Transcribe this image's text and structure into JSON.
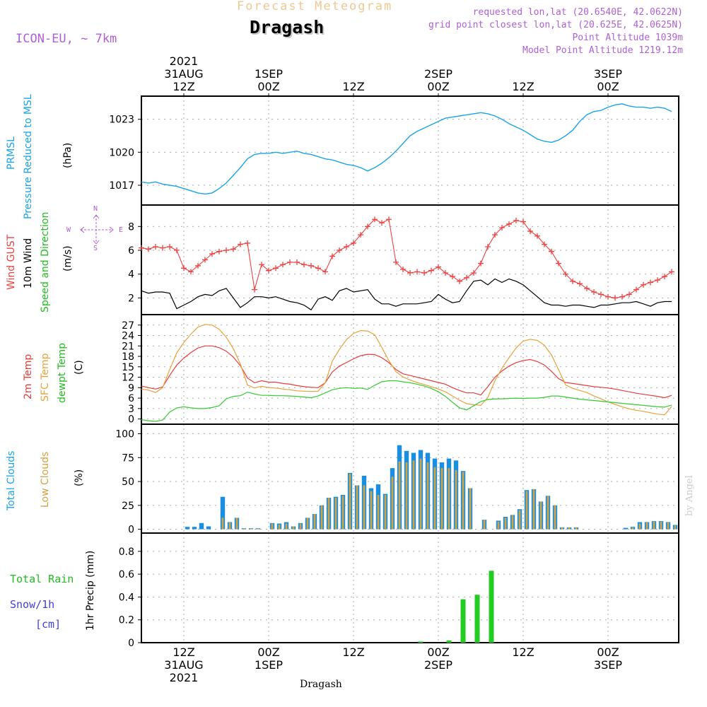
{
  "header": {
    "title_top": "Forecast Meteogram",
    "location": "Dragash",
    "model": "ICON-EU, ~ 7km",
    "requested": "requested lon,lat (20.6540E, 42.0622N)",
    "grid_point": "grid point closest lon,lat (20.625E, 42.0625N)",
    "point_alt": "Point Altitude 1039m",
    "model_alt": "Model Point Altitude 1219.12m"
  },
  "top_time_labels": [
    {
      "line1": "2021",
      "line2": "31AUG",
      "line3": "12Z",
      "t": 6
    },
    {
      "line1": "",
      "line2": "1SEP",
      "line3": "00Z",
      "t": 18
    },
    {
      "line1": "",
      "line2": "",
      "line3": "12Z",
      "t": 30
    },
    {
      "line1": "",
      "line2": "2SEP",
      "line3": "00Z",
      "t": 42
    },
    {
      "line1": "",
      "line2": "",
      "line3": "12Z",
      "t": 54
    },
    {
      "line1": "",
      "line2": "3SEP",
      "line3": "00Z",
      "t": 66
    }
  ],
  "bottom_time_labels": [
    {
      "line1": "12Z",
      "line2": "31AUG",
      "line3": "2021",
      "t": 6
    },
    {
      "line1": "00Z",
      "line2": "1SEP",
      "line3": "",
      "t": 18
    },
    {
      "line1": "12Z",
      "line2": "",
      "line3": "",
      "t": 30
    },
    {
      "line1": "00Z",
      "line2": "2SEP",
      "line3": "",
      "t": 42
    },
    {
      "line1": "12Z",
      "line2": "",
      "line3": "",
      "t": 54
    },
    {
      "line1": "00Z",
      "line2": "3SEP",
      "line3": "",
      "t": 66
    }
  ],
  "footer_location": "Dragash",
  "credit": "by Angel",
  "colors": {
    "pressure": "#1aa3e8",
    "gust": "#f04040",
    "wind": "#000000",
    "temp2m": "#e83c3c",
    "sfc": "#e8a23c",
    "dewpt": "#33cc33",
    "total_clouds": "#1a8fe0",
    "low_clouds": "#d4a040",
    "rain": "#22cc22",
    "snow": "#4040e0",
    "compass": "#b05fd6"
  },
  "labels": {
    "prmsl": "PRMSL",
    "prmsl_desc": "Pressure Reduced to MSL",
    "hpa": "(hPa)",
    "gust": "Wind GUST",
    "wind10m": "10m Wind",
    "wind_speed_dir": "Speed and Direction",
    "ms": "(m/s)",
    "temp2m": "2m Temp",
    "sfc": "SFC Temp",
    "dewpt": "dewpt Temp",
    "c": "(C)",
    "total_clouds": "Total Clouds",
    "low_clouds": "Low Clouds",
    "pct": "(%)",
    "total_rain": "Total  Rain",
    "snow": "Snow/1h",
    "cm": "[cm]",
    "precip": "1hr Precip (mm)",
    "compass_n": "N",
    "compass_s": "S",
    "compass_w": "W",
    "compass_e": "E"
  },
  "chart_data": [
    {
      "type": "line",
      "title": "PRMSL Pressure Reduced to MSL",
      "ylabel": "(hPa)",
      "ylim": [
        1015.2,
        1025.1
      ],
      "yticks": [
        "1017",
        "1020",
        "1023"
      ],
      "x": [
        0,
        1,
        2,
        3,
        4,
        5,
        6,
        7,
        8,
        9,
        10,
        11,
        12,
        13,
        14,
        15,
        16,
        17,
        18,
        19,
        20,
        21,
        22,
        23,
        24,
        25,
        26,
        27,
        28,
        29,
        30,
        31,
        32,
        33,
        34,
        35,
        36,
        37,
        38,
        39,
        40,
        41,
        42,
        43,
        44,
        45,
        46,
        47,
        48,
        49,
        50,
        51,
        52,
        53,
        54,
        55,
        56,
        57,
        58,
        59,
        60,
        61,
        62,
        63,
        64,
        65,
        66,
        67,
        68,
        69,
        70,
        71,
        72,
        73,
        74,
        75
      ],
      "series": [
        {
          "name": "PRMSL",
          "values": [
            1017.3,
            1017.2,
            1017.3,
            1017.1,
            1017.0,
            1016.9,
            1016.7,
            1016.5,
            1016.3,
            1016.2,
            1016.3,
            1016.7,
            1017.2,
            1017.9,
            1018.6,
            1019.4,
            1019.8,
            1019.9,
            1019.9,
            1020.0,
            1019.9,
            1020.0,
            1020.1,
            1019.9,
            1019.8,
            1019.6,
            1019.4,
            1019.3,
            1019.1,
            1018.9,
            1018.8,
            1018.6,
            1018.3,
            1018.6,
            1019.0,
            1019.5,
            1020.1,
            1020.8,
            1021.5,
            1021.9,
            1022.2,
            1022.5,
            1022.8,
            1023.1,
            1023.2,
            1023.3,
            1023.4,
            1023.5,
            1023.6,
            1023.5,
            1023.3,
            1023.0,
            1022.6,
            1022.3,
            1022.0,
            1021.6,
            1021.2,
            1021.0,
            1020.9,
            1021.1,
            1021.5,
            1022.0,
            1022.8,
            1023.4,
            1023.7,
            1023.8,
            1024.1,
            1024.3,
            1024.4,
            1024.2,
            1024.1,
            1024.1,
            1024.0,
            1024.1,
            1024.0,
            1023.7
          ]
        }
      ]
    },
    {
      "type": "line",
      "title": "Wind GUST / 10m Wind Speed and Direction",
      "ylabel": "(m/s)",
      "ylim": [
        0.6,
        9.8
      ],
      "yticks": [
        "2",
        "4",
        "6",
        "8"
      ],
      "x": [
        0,
        1,
        2,
        3,
        4,
        5,
        6,
        7,
        8,
        9,
        10,
        11,
        12,
        13,
        14,
        15,
        16,
        17,
        18,
        19,
        20,
        21,
        22,
        23,
        24,
        25,
        26,
        27,
        28,
        29,
        30,
        31,
        32,
        33,
        34,
        35,
        36,
        37,
        38,
        39,
        40,
        41,
        42,
        43,
        44,
        45,
        46,
        47,
        48,
        49,
        50,
        51,
        52,
        53,
        54,
        55,
        56,
        57,
        58,
        59,
        60,
        61,
        62,
        63,
        64,
        65,
        66,
        67,
        68,
        69,
        70,
        71,
        72,
        73,
        74,
        75
      ],
      "series": [
        {
          "name": "Wind GUST",
          "values": [
            6.2,
            6.1,
            6.3,
            6.2,
            6.3,
            6.0,
            4.5,
            4.2,
            4.7,
            5.2,
            5.7,
            5.9,
            6.0,
            6.1,
            6.5,
            6.6,
            2.7,
            4.8,
            4.3,
            4.5,
            4.8,
            5.0,
            5.0,
            4.8,
            4.7,
            4.5,
            4.2,
            5.5,
            6.0,
            6.3,
            6.6,
            7.3,
            8.0,
            8.6,
            8.3,
            8.6,
            5.0,
            4.4,
            4.1,
            4.2,
            4.1,
            4.3,
            4.6,
            4.1,
            3.8,
            3.4,
            3.7,
            4.1,
            4.9,
            6.3,
            7.3,
            7.9,
            8.2,
            8.5,
            8.4,
            7.6,
            7.2,
            6.5,
            5.9,
            4.9,
            4.0,
            3.4,
            3.2,
            2.8,
            2.5,
            2.3,
            2.1,
            2.0,
            2.1,
            2.3,
            2.7,
            3.1,
            3.3,
            3.5,
            3.8,
            4.2
          ]
        },
        {
          "name": "10m Wind",
          "values": [
            2.6,
            2.4,
            2.5,
            2.5,
            2.4,
            1.1,
            1.4,
            1.7,
            2.1,
            2.3,
            2.2,
            2.6,
            2.8,
            2.0,
            1.2,
            1.6,
            2.1,
            2.1,
            2.0,
            2.1,
            1.9,
            1.7,
            1.6,
            1.4,
            1.0,
            1.9,
            2.1,
            1.8,
            2.6,
            2.8,
            2.5,
            2.6,
            2.7,
            1.9,
            1.5,
            1.5,
            1.3,
            1.5,
            1.5,
            1.5,
            1.6,
            1.7,
            2.3,
            1.9,
            1.6,
            1.7,
            2.6,
            3.4,
            3.5,
            3.1,
            3.6,
            3.3,
            3.6,
            3.4,
            3.1,
            2.6,
            2.1,
            1.6,
            1.4,
            1.4,
            1.3,
            1.4,
            1.4,
            1.3,
            1.2,
            1.4,
            1.4,
            1.5,
            1.6,
            1.6,
            1.7,
            1.5,
            1.3,
            1.6,
            1.7,
            1.7
          ]
        }
      ]
    },
    {
      "type": "line",
      "title": "2m Temp / SFC Temp / dewpt Temp",
      "ylabel": "(C)",
      "ylim": [
        -1.5,
        30
      ],
      "yticks": [
        "0",
        "3",
        "6",
        "9",
        "12",
        "15",
        "18",
        "21",
        "24",
        "27"
      ],
      "x": [
        0,
        1,
        2,
        3,
        4,
        5,
        6,
        7,
        8,
        9,
        10,
        11,
        12,
        13,
        14,
        15,
        16,
        17,
        18,
        19,
        20,
        21,
        22,
        23,
        24,
        25,
        26,
        27,
        28,
        29,
        30,
        31,
        32,
        33,
        34,
        35,
        36,
        37,
        38,
        39,
        40,
        41,
        42,
        43,
        44,
        45,
        46,
        47,
        48,
        49,
        50,
        51,
        52,
        53,
        54,
        55,
        56,
        57,
        58,
        59,
        60,
        61,
        62,
        63,
        64,
        65,
        66,
        67,
        68,
        69,
        70,
        71,
        72,
        73,
        74,
        75
      ],
      "series": [
        {
          "name": "2m Temp",
          "values": [
            9.5,
            9.0,
            8.6,
            9.2,
            12.5,
            15.5,
            17.5,
            19.1,
            20.4,
            21.0,
            21.0,
            20.5,
            19.5,
            17.8,
            15.3,
            11.8,
            10.4,
            11.0,
            10.6,
            10.6,
            10.2,
            10.0,
            9.6,
            9.3,
            9.1,
            9.0,
            10.4,
            13.5,
            15.2,
            16.2,
            17.3,
            18.2,
            18.6,
            18.5,
            17.6,
            16.2,
            14.2,
            13.0,
            12.5,
            12.0,
            11.5,
            11.0,
            10.5,
            10.0,
            9.0,
            8.2,
            7.5,
            7.5,
            6.9,
            9.3,
            12.0,
            13.8,
            15.2,
            16.2,
            16.8,
            17.1,
            16.5,
            15.5,
            13.7,
            11.6,
            10.5,
            10.2,
            9.9,
            9.6,
            9.3,
            9.1,
            8.9,
            8.6,
            8.2,
            7.8,
            7.4,
            7.1,
            6.8,
            6.5,
            6.1,
            6.8
          ]
        },
        {
          "name": "SFC Temp",
          "values": [
            8.6,
            8.3,
            7.6,
            9.0,
            14.2,
            19.0,
            22.0,
            24.4,
            26.4,
            27.2,
            27.0,
            25.8,
            23.5,
            20.2,
            15.8,
            9.8,
            8.9,
            9.4,
            9.0,
            8.9,
            8.6,
            8.4,
            8.1,
            8.0,
            7.9,
            8.0,
            10.4,
            16.6,
            20.0,
            22.8,
            24.6,
            25.4,
            25.3,
            24.2,
            20.6,
            16.8,
            13.6,
            12.1,
            11.2,
            10.5,
            9.9,
            9.3,
            8.6,
            7.8,
            6.6,
            5.4,
            4.4,
            4.1,
            3.9,
            6.2,
            11.0,
            14.6,
            17.6,
            20.4,
            22.4,
            22.9,
            22.6,
            21.2,
            18.4,
            14.2,
            9.8,
            8.8,
            8.2,
            7.6,
            6.6,
            5.8,
            4.9,
            4.2,
            3.5,
            2.9,
            2.5,
            2.2,
            1.8,
            1.4,
            1.2,
            3.6
          ]
        },
        {
          "name": "dewpt Temp",
          "values": [
            -0.2,
            -0.5,
            -0.7,
            -0.3,
            2.0,
            3.2,
            3.5,
            3.2,
            3.0,
            3.0,
            3.3,
            3.8,
            5.8,
            6.5,
            6.7,
            7.7,
            7.2,
            6.8,
            6.8,
            6.7,
            6.7,
            6.6,
            6.5,
            6.3,
            6.1,
            6.6,
            7.5,
            8.4,
            8.8,
            9.0,
            8.8,
            8.9,
            8.5,
            9.7,
            10.7,
            11.0,
            11.0,
            10.7,
            10.4,
            10.0,
            9.5,
            8.8,
            7.8,
            6.5,
            4.8,
            3.2,
            2.6,
            3.8,
            5.0,
            5.6,
            5.8,
            5.8,
            5.9,
            6.0,
            5.9,
            6.0,
            6.0,
            6.2,
            6.6,
            6.6,
            6.3,
            6.0,
            5.7,
            5.5,
            5.3,
            5.1,
            4.9,
            4.7,
            4.5,
            4.3,
            4.1,
            3.9,
            3.7,
            3.5,
            3.4,
            4.0
          ]
        }
      ]
    },
    {
      "type": "bar",
      "title": "Total Clouds / Low Clouds",
      "ylabel": "(%)",
      "ylim": [
        -4,
        110
      ],
      "yticks": [
        "0",
        "25",
        "50",
        "75",
        "100"
      ],
      "x": [
        0,
        1,
        2,
        3,
        4,
        5,
        6,
        7,
        8,
        9,
        10,
        11,
        12,
        13,
        14,
        15,
        16,
        17,
        18,
        19,
        20,
        21,
        22,
        23,
        24,
        25,
        26,
        27,
        28,
        29,
        30,
        31,
        32,
        33,
        34,
        35,
        36,
        37,
        38,
        39,
        40,
        41,
        42,
        43,
        44,
        45,
        46,
        47,
        48,
        49,
        50,
        51,
        52,
        53,
        54,
        55,
        56,
        57,
        58,
        59,
        60,
        61,
        62,
        63,
        64,
        65,
        66,
        67,
        68,
        69,
        70,
        71,
        72,
        73,
        74,
        75
      ],
      "series": [
        {
          "name": "Total Clouds",
          "values": [
            0,
            0,
            0,
            0,
            0,
            0,
            2.5,
            2.5,
            6.5,
            3,
            0,
            34,
            7.5,
            12,
            1,
            1,
            1,
            0,
            6.5,
            6,
            7.5,
            3,
            6.5,
            12,
            16,
            25,
            33,
            34,
            36,
            59,
            46,
            56,
            43,
            47,
            37,
            64,
            88,
            82,
            80,
            83,
            80,
            74,
            70,
            74,
            72,
            61,
            43,
            0,
            10,
            0,
            9,
            13,
            15,
            21,
            41,
            42,
            29,
            35,
            25,
            2,
            2,
            2,
            0,
            0,
            0,
            0,
            0,
            0,
            1.5,
            2.5,
            7.5,
            7.5,
            8.5,
            8.5,
            7.5,
            4.5
          ]
        },
        {
          "name": "Low Clouds",
          "values": [
            0,
            0,
            0,
            0,
            0,
            0,
            0,
            0,
            0,
            0,
            0,
            12,
            7,
            12,
            1,
            1,
            1,
            0,
            6,
            5,
            6,
            3,
            6,
            12,
            16,
            25,
            33,
            33,
            35,
            58,
            46,
            46,
            40,
            36,
            36,
            55,
            71,
            70,
            72,
            74,
            70,
            65,
            64,
            64,
            62,
            60,
            43,
            0,
            10,
            0,
            8,
            12,
            15,
            20,
            40,
            42,
            29,
            35,
            25,
            2,
            2,
            2,
            0,
            0,
            0,
            0,
            0,
            0,
            0,
            2,
            6,
            7,
            8,
            8,
            7,
            4
          ]
        }
      ]
    },
    {
      "type": "bar",
      "title": "1hr Precip (mm)",
      "ylabel": "1hr Precip (mm)",
      "ylim": [
        0,
        0.96
      ],
      "yticks": [
        "0",
        "0.2",
        "0.4",
        "0.6",
        "0.8"
      ],
      "x": [
        39,
        43,
        45,
        47,
        49
      ],
      "series": [
        {
          "name": "Total Rain",
          "values": [
            0.01,
            0.02,
            0.38,
            0.42,
            0.63
          ]
        }
      ]
    }
  ]
}
